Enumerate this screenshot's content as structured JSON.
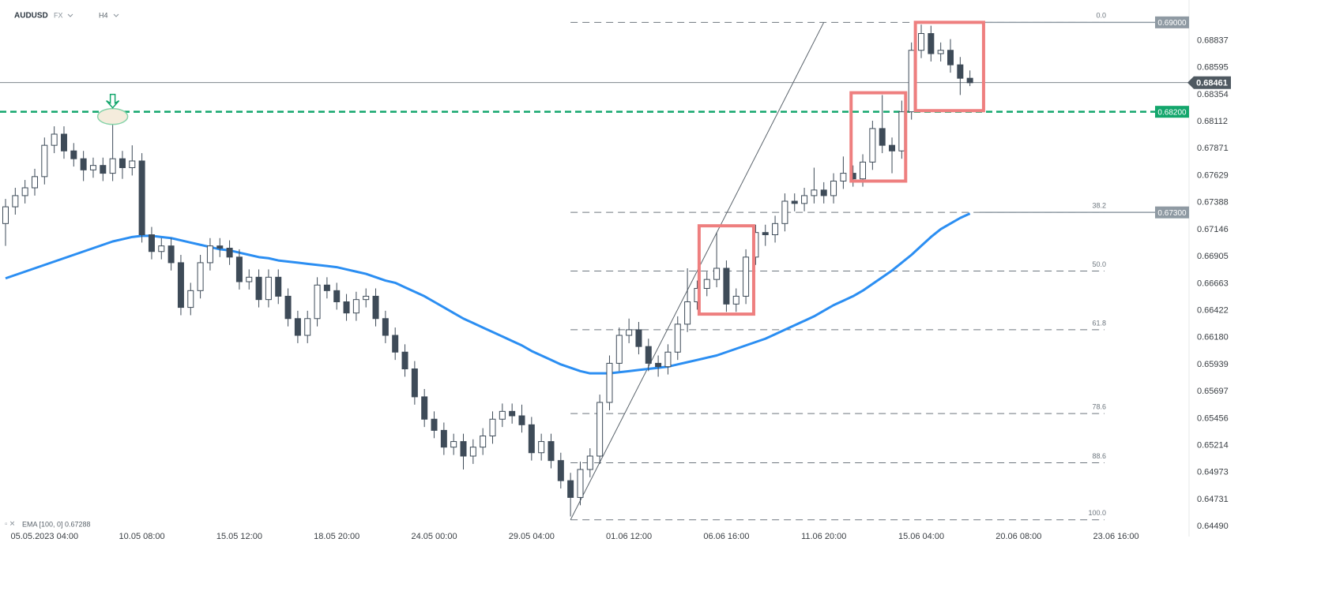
{
  "header": {
    "symbol": "AUDUSD",
    "market": "FX",
    "timeframe": "H4"
  },
  "chart_data": {
    "type": "candlestick",
    "categories": [
      null,
      null,
      null,
      null,
      "05.05.2023 04:00",
      null,
      null,
      null,
      null,
      null,
      null,
      null,
      null,
      null,
      "10.05 08:00",
      null,
      null,
      null,
      null,
      null,
      null,
      null,
      null,
      null,
      "15.05 12:00",
      null,
      null,
      null,
      null,
      null,
      null,
      null,
      null,
      null,
      "18.05 20:00",
      null,
      null,
      null,
      null,
      null,
      null,
      null,
      null,
      null,
      "24.05 00:00",
      null,
      null,
      null,
      null,
      null,
      null,
      null,
      null,
      null,
      "29.05 04:00",
      null,
      null,
      null,
      null,
      null,
      null,
      null,
      null,
      null,
      "01.06 12:00",
      null,
      null,
      null,
      null,
      null,
      null,
      null,
      null,
      null,
      "06.06 16:00",
      null,
      null,
      null,
      null,
      null,
      null,
      null,
      null,
      null,
      "11.06 20:00",
      null,
      null,
      null,
      null,
      null,
      null,
      null,
      null,
      null,
      "15.06 04:00",
      null,
      null,
      null,
      null,
      null,
      null,
      null,
      null,
      null,
      "20.06 08:00",
      null,
      null,
      null,
      null,
      null,
      null,
      null,
      null,
      null,
      "23.06 16:00"
    ],
    "open": [
      0.672,
      0.6735,
      0.6745,
      0.6752,
      0.6762,
      0.679,
      0.68,
      0.6785,
      0.6778,
      0.6768,
      0.6772,
      0.6765,
      0.6778,
      0.677,
      0.6776,
      0.671,
      0.6695,
      0.67,
      0.6685,
      0.6645,
      0.666,
      0.6685,
      0.67,
      0.6698,
      0.669,
      0.6668,
      0.6672,
      0.6652,
      0.6672,
      0.6655,
      0.6635,
      0.662,
      0.6635,
      0.6665,
      0.666,
      0.665,
      0.664,
      0.6652,
      0.6655,
      0.6635,
      0.662,
      0.6605,
      0.659,
      0.6565,
      0.6545,
      0.6535,
      0.652,
      0.6525,
      0.6512,
      0.652,
      0.653,
      0.6545,
      0.6552,
      0.6548,
      0.654,
      0.6515,
      0.6525,
      0.6508,
      0.649,
      0.6475,
      0.65,
      0.6512,
      0.656,
      0.6595,
      0.662,
      0.6625,
      0.661,
      0.6595,
      0.6592,
      0.6605,
      0.663,
      0.665,
      0.6662,
      0.667,
      0.668,
      0.6648,
      0.6655,
      0.669,
      0.6712,
      0.671,
      0.672,
      0.674,
      0.6738,
      0.6745,
      0.675,
      0.6745,
      0.6758,
      0.6765,
      0.676,
      0.6775,
      0.6805,
      0.679,
      0.6785,
      0.682,
      0.6875,
      0.689,
      0.6872,
      0.6875,
      0.6862,
      0.685,
      null,
      null,
      null,
      null,
      null,
      null,
      null,
      null,
      null,
      null,
      null,
      null,
      null,
      null,
      null
    ],
    "high": [
      0.6742,
      0.6752,
      0.6759,
      0.6769,
      0.6797,
      0.6807,
      0.6807,
      0.6792,
      0.6785,
      0.6779,
      0.6779,
      0.682,
      0.6785,
      0.679,
      0.6783,
      0.6717,
      0.6707,
      0.6707,
      0.6692,
      0.6667,
      0.6692,
      0.6707,
      0.6707,
      0.6705,
      0.6697,
      0.6679,
      0.6679,
      0.6679,
      0.6679,
      0.6662,
      0.6642,
      0.6642,
      0.6672,
      0.6672,
      0.6667,
      0.6657,
      0.6659,
      0.6662,
      0.6662,
      0.6642,
      0.6627,
      0.6612,
      0.6597,
      0.6572,
      0.6552,
      0.6542,
      0.6532,
      0.6532,
      0.6527,
      0.6537,
      0.6552,
      0.6559,
      0.6559,
      0.6558,
      0.6547,
      0.6532,
      0.6532,
      0.6515,
      0.6497,
      0.6507,
      0.6519,
      0.6567,
      0.6602,
      0.6627,
      0.6635,
      0.6632,
      0.6617,
      0.6602,
      0.6612,
      0.6637,
      0.668,
      0.6669,
      0.6677,
      0.6712,
      0.6687,
      0.6662,
      0.6697,
      0.6719,
      0.6719,
      0.6727,
      0.6747,
      0.6747,
      0.6752,
      0.677,
      0.6757,
      0.6765,
      0.678,
      0.6772,
      0.6782,
      0.6812,
      0.6835,
      0.6797,
      0.683,
      0.6882,
      0.6898,
      0.6897,
      0.6882,
      0.6885,
      0.6869,
      0.6857,
      null,
      null,
      null,
      null,
      null,
      null,
      null,
      null,
      null,
      null,
      null,
      null,
      null,
      null,
      null
    ],
    "low": [
      0.67,
      0.6728,
      0.6738,
      0.6745,
      0.6755,
      0.6783,
      0.6778,
      0.6771,
      0.6758,
      0.6761,
      0.6758,
      0.6758,
      0.676,
      0.6763,
      0.6703,
      0.6688,
      0.6688,
      0.6678,
      0.6638,
      0.6638,
      0.6653,
      0.6678,
      0.669,
      0.6683,
      0.6661,
      0.6661,
      0.6645,
      0.6645,
      0.6648,
      0.6628,
      0.6613,
      0.6613,
      0.6628,
      0.6653,
      0.6643,
      0.6633,
      0.6633,
      0.6645,
      0.6628,
      0.6613,
      0.6598,
      0.6583,
      0.6558,
      0.6538,
      0.6528,
      0.6513,
      0.6513,
      0.65,
      0.6505,
      0.6513,
      0.6523,
      0.6538,
      0.6541,
      0.6533,
      0.6508,
      0.6508,
      0.6501,
      0.6483,
      0.6458,
      0.6468,
      0.6493,
      0.6505,
      0.6553,
      0.6588,
      0.6613,
      0.6603,
      0.6588,
      0.6583,
      0.6585,
      0.6598,
      0.6623,
      0.6643,
      0.6655,
      0.6663,
      0.6641,
      0.6641,
      0.6648,
      0.6683,
      0.67,
      0.6703,
      0.6713,
      0.6731,
      0.6731,
      0.6738,
      0.6738,
      0.6738,
      0.6751,
      0.6753,
      0.6753,
      0.6768,
      0.6783,
      0.6765,
      0.6778,
      0.6813,
      0.6868,
      0.6865,
      0.6865,
      0.6855,
      0.6835,
      0.6843,
      null,
      null,
      null,
      null,
      null,
      null,
      null,
      null,
      null,
      null,
      null,
      null,
      null,
      null,
      null
    ],
    "close": [
      0.6735,
      0.6745,
      0.6752,
      0.6762,
      0.679,
      0.68,
      0.6785,
      0.6778,
      0.6768,
      0.6772,
      0.6765,
      0.6778,
      0.677,
      0.6776,
      0.671,
      0.6695,
      0.67,
      0.6685,
      0.6645,
      0.666,
      0.6685,
      0.67,
      0.6698,
      0.669,
      0.6668,
      0.6672,
      0.6652,
      0.6672,
      0.6655,
      0.6635,
      0.662,
      0.6635,
      0.6665,
      0.666,
      0.665,
      0.664,
      0.6652,
      0.6655,
      0.6635,
      0.662,
      0.6605,
      0.659,
      0.6565,
      0.6545,
      0.6535,
      0.652,
      0.6525,
      0.6512,
      0.652,
      0.653,
      0.6545,
      0.6552,
      0.6548,
      0.654,
      0.6515,
      0.6525,
      0.6508,
      0.649,
      0.6475,
      0.65,
      0.6512,
      0.656,
      0.6595,
      0.662,
      0.6625,
      0.661,
      0.6595,
      0.6592,
      0.6605,
      0.663,
      0.665,
      0.6662,
      0.667,
      0.668,
      0.6648,
      0.6655,
      0.669,
      0.6712,
      0.671,
      0.672,
      0.674,
      0.6738,
      0.6745,
      0.675,
      0.6745,
      0.6758,
      0.6765,
      0.676,
      0.6775,
      0.6805,
      0.679,
      0.6785,
      0.682,
      0.6875,
      0.689,
      0.6872,
      0.6875,
      0.6862,
      0.685,
      0.6846,
      null,
      null,
      null,
      null,
      null,
      null,
      null,
      null,
      null,
      null,
      null,
      null,
      null,
      null,
      null
    ],
    "colors": {
      "up": "#ffffff",
      "down": "#3e4b58",
      "outline": "#3e4b58"
    },
    "ema": {
      "label": "EMA [100, 0] 0.67288",
      "color": "#2b8ef2",
      "values": [
        0.6671,
        0.6674,
        0.6677,
        0.668,
        0.6683,
        0.6686,
        0.6689,
        0.6692,
        0.6695,
        0.6698,
        0.6701,
        0.6704,
        0.6706,
        0.6708,
        0.6709,
        0.6709,
        0.6708,
        0.6707,
        0.6705,
        0.6703,
        0.6701,
        0.6699,
        0.6697,
        0.6696,
        0.6694,
        0.6692,
        0.669,
        0.6689,
        0.6687,
        0.6686,
        0.6685,
        0.6684,
        0.6683,
        0.6682,
        0.6681,
        0.6679,
        0.6677,
        0.6675,
        0.6672,
        0.6669,
        0.6667,
        0.6663,
        0.6659,
        0.6655,
        0.665,
        0.6645,
        0.664,
        0.6635,
        0.6631,
        0.6627,
        0.6623,
        0.6619,
        0.6615,
        0.6611,
        0.6606,
        0.6602,
        0.6598,
        0.6594,
        0.6591,
        0.6588,
        0.6586,
        0.6586,
        0.6586,
        0.6587,
        0.6588,
        0.6589,
        0.659,
        0.6591,
        0.6592,
        0.6594,
        0.6596,
        0.6598,
        0.66,
        0.6602,
        0.6605,
        0.6608,
        0.6611,
        0.6614,
        0.6617,
        0.6621,
        0.6625,
        0.6629,
        0.6633,
        0.6637,
        0.6642,
        0.6647,
        0.6651,
        0.6655,
        0.666,
        0.6666,
        0.6672,
        0.6678,
        0.6685,
        0.6692,
        0.67,
        0.6708,
        0.6715,
        0.672,
        0.6725,
        0.6729,
        null,
        null,
        null,
        null,
        null,
        null,
        null,
        null,
        null,
        null,
        null,
        null,
        null,
        null,
        null
      ]
    },
    "ylim": [
      0.644,
      0.692
    ],
    "yticks": [
      0.68837,
      0.68595,
      0.68354,
      0.68112,
      0.67871,
      0.67629,
      0.67388,
      0.67146,
      0.66905,
      0.66663,
      0.66422,
      {
        "value": 0.6618,
        "label": "0.66180"
      },
      0.65939,
      0.65697,
      0.65456,
      0.65214,
      0.64973,
      0.64731,
      {
        "value": 0.6449,
        "label": "0.64490"
      }
    ],
    "fibonacci": {
      "from": {
        "index": 58,
        "price": 0.6455
      },
      "to": {
        "index": 84,
        "price": 0.69
      },
      "levels": [
        {
          "label": "0.0",
          "price": 0.69
        },
        {
          "label": "38.2",
          "price": 0.673
        },
        {
          "label": "50.0",
          "price": 0.66775
        },
        {
          "label": "61.8",
          "price": 0.6625
        },
        {
          "label": "78.6",
          "price": 0.655
        },
        {
          "label": "88.6",
          "price": 0.6506
        },
        {
          "label": "100.0",
          "price": 0.6455
        }
      ]
    },
    "price_lines": [
      {
        "value": 0.69,
        "label": "0.69000",
        "color": "#8f9aa3",
        "style": "short"
      },
      {
        "value": 0.68461,
        "label": "0.68461",
        "color": "#6b747c",
        "style": "current"
      },
      {
        "value": 0.682,
        "label": "0.68200",
        "color": "#13a66c",
        "style": "dashed"
      },
      {
        "value": 0.673,
        "label": "0.67300",
        "color": "#8f9aa3",
        "style": "short"
      }
    ],
    "boxes": [
      {
        "start": 71.2,
        "end": 76.8,
        "top": 0.6718,
        "bottom": 0.6639
      },
      {
        "start": 86.8,
        "end": 92.4,
        "top": 0.6837,
        "bottom": 0.6758
      },
      {
        "start": 93.4,
        "end": 100.4,
        "top": 0.69,
        "bottom": 0.6821
      }
    ],
    "box_color": "#ee7f7f",
    "marker": {
      "index": 11,
      "price": 0.682,
      "color": "#13a66c"
    }
  }
}
